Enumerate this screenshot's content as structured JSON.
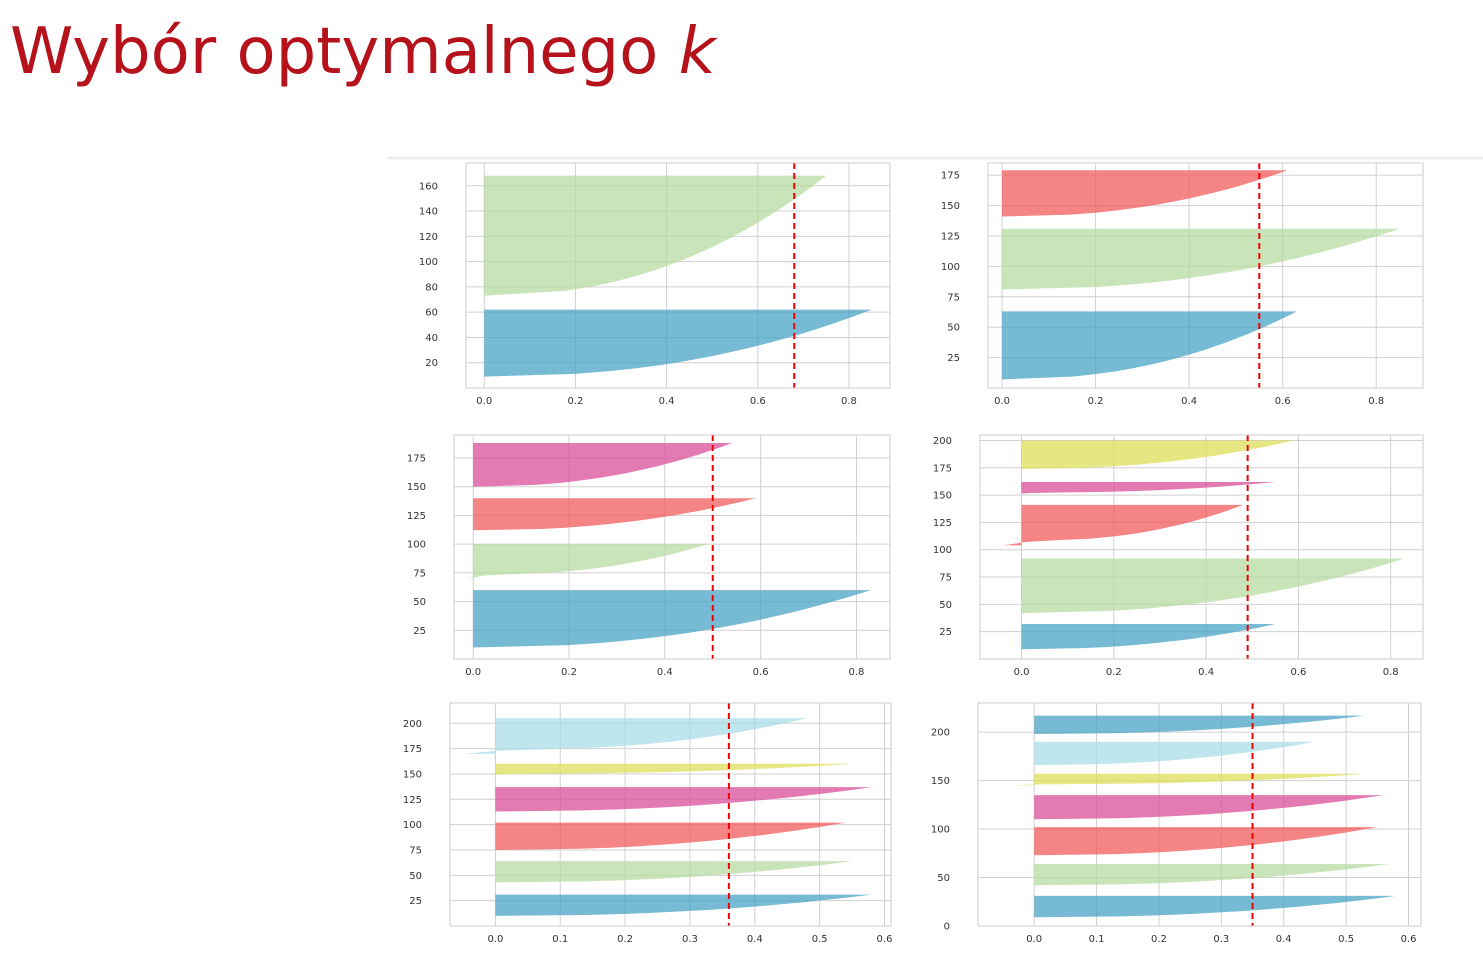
{
  "slide": {
    "title": "Wybór optymalnego",
    "title_var": "k"
  },
  "chart_data": [
    {
      "type": "area",
      "n_clusters": 2,
      "xticks": [
        0.0,
        0.2,
        0.4,
        0.6,
        0.8
      ],
      "xlim": [
        -0.04,
        0.89
      ],
      "yticks": [
        20,
        40,
        60,
        80,
        100,
        120,
        140,
        160
      ],
      "ylim": [
        0,
        178
      ],
      "average_silhouette": 0.68,
      "clusters": [
        {
          "color": "#4aa3c5",
          "y_start": 9,
          "y_end": 62,
          "min": 0.0,
          "max": 0.85
        },
        {
          "color": "#b6dba0",
          "y_start": 73,
          "y_end": 168,
          "min": 0.0,
          "max": 0.75
        }
      ]
    },
    {
      "type": "area",
      "n_clusters": 3,
      "xticks": [
        0.0,
        0.2,
        0.4,
        0.6,
        0.8
      ],
      "xlim": [
        -0.03,
        0.9
      ],
      "yticks": [
        25,
        50,
        75,
        100,
        125,
        150,
        175
      ],
      "ylim": [
        0,
        185
      ],
      "average_silhouette": 0.55,
      "clusters": [
        {
          "color": "#4aa3c5",
          "y_start": 7,
          "y_end": 63,
          "min": 0.0,
          "max": 0.63
        },
        {
          "color": "#b6dba0",
          "y_start": 81,
          "y_end": 131,
          "min": 0.0,
          "max": 0.85
        },
        {
          "color": "#f25b5b",
          "y_start": 141,
          "y_end": 179,
          "min": 0.0,
          "max": 0.61
        }
      ]
    },
    {
      "type": "area",
      "n_clusters": 4,
      "xticks": [
        0.0,
        0.2,
        0.4,
        0.6,
        0.8
      ],
      "xlim": [
        -0.04,
        0.87
      ],
      "yticks": [
        25,
        50,
        75,
        100,
        125,
        150,
        175
      ],
      "ylim": [
        0,
        195
      ],
      "average_silhouette": 0.5,
      "clusters": [
        {
          "color": "#4aa3c5",
          "y_start": 10,
          "y_end": 60,
          "min": 0.0,
          "max": 0.83
        },
        {
          "color": "#b6dba0",
          "y_start": 70,
          "y_end": 100,
          "min": -0.01,
          "max": 0.49
        },
        {
          "color": "#f25b5b",
          "y_start": 112,
          "y_end": 140,
          "min": 0.0,
          "max": 0.59
        },
        {
          "color": "#da4e98",
          "y_start": 150,
          "y_end": 188,
          "min": 0.0,
          "max": 0.54
        }
      ]
    },
    {
      "type": "area",
      "n_clusters": 5,
      "xticks": [
        0.0,
        0.2,
        0.4,
        0.6,
        0.8
      ],
      "xlim": [
        -0.09,
        0.87
      ],
      "yticks": [
        25,
        50,
        75,
        100,
        125,
        150,
        175,
        200
      ],
      "ylim": [
        0,
        205
      ],
      "average_silhouette": 0.49,
      "clusters": [
        {
          "color": "#4aa3c5",
          "y_start": 9,
          "y_end": 32,
          "min": 0.0,
          "max": 0.55
        },
        {
          "color": "#b6dba0",
          "y_start": 42,
          "y_end": 92,
          "min": 0.0,
          "max": 0.83
        },
        {
          "color": "#f25b5b",
          "y_start": 104,
          "y_end": 141,
          "min": -0.04,
          "max": 0.48
        },
        {
          "color": "#da4e98",
          "y_start": 151,
          "y_end": 162,
          "min": -0.01,
          "max": 0.55
        },
        {
          "color": "#dedd58",
          "y_start": 174,
          "y_end": 200,
          "min": 0.0,
          "max": 0.59
        }
      ]
    },
    {
      "type": "area",
      "n_clusters": 6,
      "xticks": [
        0.0,
        0.1,
        0.2,
        0.3,
        0.4,
        0.5,
        0.6
      ],
      "xlim": [
        -0.07,
        0.61
      ],
      "yticks": [
        25,
        50,
        75,
        100,
        125,
        150,
        175,
        200
      ],
      "ylim": [
        0,
        220
      ],
      "average_silhouette": 0.36,
      "clusters": [
        {
          "color": "#4aa3c5",
          "y_start": 10,
          "y_end": 31,
          "min": 0.0,
          "max": 0.58
        },
        {
          "color": "#b6dba0",
          "y_start": 43,
          "y_end": 64,
          "min": 0.0,
          "max": 0.55
        },
        {
          "color": "#f25b5b",
          "y_start": 75,
          "y_end": 102,
          "min": 0.0,
          "max": 0.54
        },
        {
          "color": "#da4e98",
          "y_start": 113,
          "y_end": 137,
          "min": 0.0,
          "max": 0.58
        },
        {
          "color": "#dedd58",
          "y_start": 149,
          "y_end": 160,
          "min": -0.01,
          "max": 0.55
        },
        {
          "color": "#a9dde6",
          "y_start": 170,
          "y_end": 205,
          "min": -0.05,
          "max": 0.48
        }
      ]
    },
    {
      "type": "area",
      "n_clusters": 7,
      "xticks": [
        0.0,
        0.1,
        0.2,
        0.3,
        0.4,
        0.5,
        0.6
      ],
      "xlim": [
        -0.09,
        0.62
      ],
      "yticks": [
        0,
        50,
        100,
        150,
        200
      ],
      "ylim": [
        0,
        230
      ],
      "average_silhouette": 0.35,
      "clusters": [
        {
          "color": "#4aa3c5",
          "y_start": 9,
          "y_end": 31,
          "min": 0.0,
          "max": 0.58
        },
        {
          "color": "#b6dba0",
          "y_start": 42,
          "y_end": 64,
          "min": 0.0,
          "max": 0.57
        },
        {
          "color": "#f25b5b",
          "y_start": 73,
          "y_end": 102,
          "min": 0.0,
          "max": 0.55
        },
        {
          "color": "#da4e98",
          "y_start": 110,
          "y_end": 135,
          "min": 0.0,
          "max": 0.56
        },
        {
          "color": "#dedd58",
          "y_start": 145,
          "y_end": 157,
          "min": -0.04,
          "max": 0.53
        },
        {
          "color": "#a9dde6",
          "y_start": 166,
          "y_end": 190,
          "min": 0.0,
          "max": 0.45
        },
        {
          "color": "#4aa3c5",
          "y_start": 198,
          "y_end": 217,
          "min": 0.0,
          "max": 0.53
        }
      ]
    }
  ]
}
